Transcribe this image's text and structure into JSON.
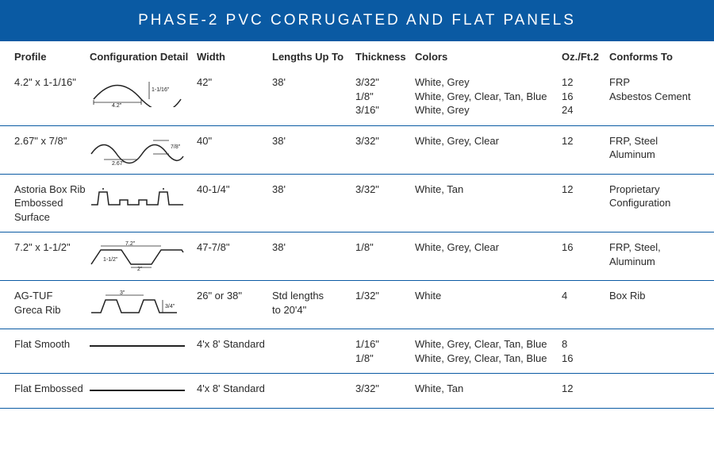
{
  "colors": {
    "header_bg": "#0a5aa3",
    "header_text": "#ffffff",
    "row_border": "#0a5aa3",
    "text": "#2a2a2a"
  },
  "header": {
    "title": "PHASE-2 PVC CORRUGATED AND FLAT PANELS"
  },
  "columns": {
    "profile": "Profile",
    "config": "Configuration Detail",
    "width": "Width",
    "length": "Lengths Up To",
    "thickness": "Thickness",
    "colors": "Colors",
    "oz": "Oz./Ft.2",
    "conforms": "Conforms To"
  },
  "rows": [
    {
      "profile": [
        "4.2\" x 1-1/16\""
      ],
      "diagram": "sine-single",
      "width": [
        "42\""
      ],
      "length": [
        "38'"
      ],
      "thickness": [
        "3/32\"",
        "1/8\"",
        "3/16\""
      ],
      "colors": [
        "White, Grey",
        "White, Grey, Clear, Tan, Blue",
        "White, Grey"
      ],
      "oz": [
        "12",
        "16",
        "24"
      ],
      "conforms": [
        "FRP",
        "Asbestos Cement"
      ]
    },
    {
      "profile": [
        "2.67\" x 7/8\""
      ],
      "diagram": "sine-double",
      "width": [
        "40\""
      ],
      "length": [
        "38'"
      ],
      "thickness": [
        "3/32\""
      ],
      "colors": [
        "White, Grey, Clear"
      ],
      "oz": [
        "12"
      ],
      "conforms": [
        "FRP, Steel",
        "Aluminum"
      ]
    },
    {
      "profile": [
        "Astoria Box Rib",
        "Embossed Surface"
      ],
      "diagram": "boxrib",
      "width": [
        "40-1/4\""
      ],
      "length": [
        "38'"
      ],
      "thickness": [
        "3/32\""
      ],
      "colors": [
        "White, Tan"
      ],
      "oz": [
        "12"
      ],
      "conforms": [
        "Proprietary",
        "Configuration"
      ]
    },
    {
      "profile": [
        "7.2\" x 1-1/2\""
      ],
      "diagram": "trapezoid-wide",
      "width": [
        "47-7/8\""
      ],
      "length": [
        "38'"
      ],
      "thickness": [
        "1/8\""
      ],
      "colors": [
        "White, Grey, Clear"
      ],
      "oz": [
        "16"
      ],
      "conforms": [
        "FRP, Steel,",
        "Aluminum"
      ]
    },
    {
      "profile": [
        "AG-TUF",
        "Greca Rib"
      ],
      "diagram": "trapezoid-small",
      "width": [
        "26\" or 38\""
      ],
      "length": [
        "Std lengths",
        "to 20'4\""
      ],
      "thickness": [
        "1/32\""
      ],
      "colors": [
        "White"
      ],
      "oz": [
        "4"
      ],
      "conforms": [
        "Box Rib"
      ]
    },
    {
      "profile": [
        "Flat Smooth"
      ],
      "diagram": "flat",
      "width": [
        "4'x 8' Standard"
      ],
      "length": [
        ""
      ],
      "thickness": [
        "1/16\"",
        "1/8\""
      ],
      "colors": [
        "White, Grey, Clear, Tan, Blue",
        "White, Grey, Clear, Tan, Blue"
      ],
      "oz": [
        "8",
        "16"
      ],
      "conforms": [
        ""
      ]
    },
    {
      "profile": [
        "Flat Embossed"
      ],
      "diagram": "flat",
      "width": [
        "4'x 8' Standard"
      ],
      "length": [
        ""
      ],
      "thickness": [
        "3/32\""
      ],
      "colors": [
        "White, Tan"
      ],
      "oz": [
        "12"
      ],
      "conforms": [
        ""
      ]
    }
  ],
  "diagram_labels": {
    "sine-single": {
      "w": "4.2\"",
      "h": "1-1/16\""
    },
    "sine-double": {
      "w": "2.67\"",
      "h": "7/8\""
    },
    "trapezoid-wide": {
      "w": "7.2\"",
      "h": "1-1/2\"",
      "flat": "2\""
    },
    "trapezoid-small": {
      "w": "3\"",
      "h": "3/4\""
    }
  }
}
